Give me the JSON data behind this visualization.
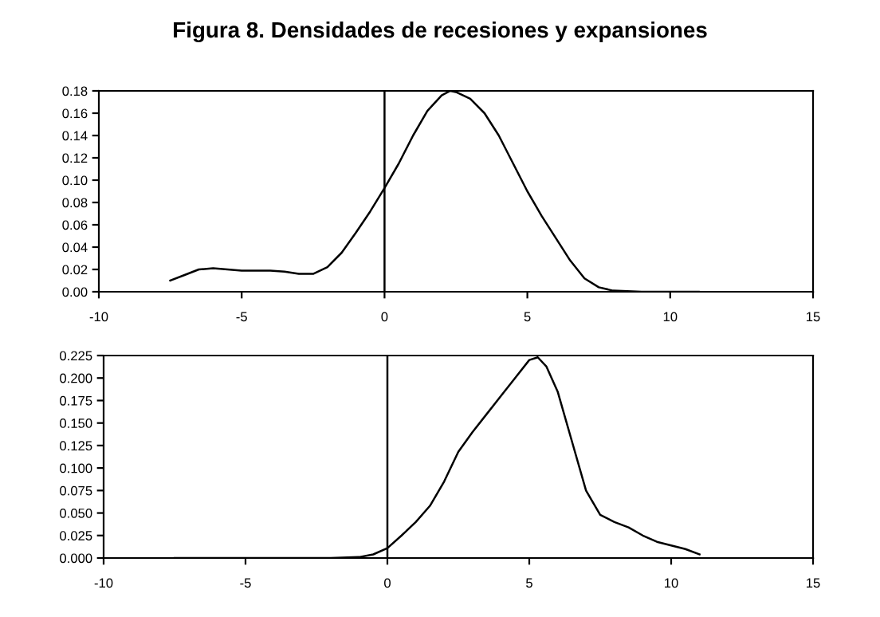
{
  "chart_data": [
    {
      "type": "line",
      "title": "Figura 8. Densidades de recesiones y expansiones",
      "series": [
        {
          "color": "#000000",
          "x": [
            -7.5,
            -7,
            -6.5,
            -6,
            -5.5,
            -5,
            -4.5,
            -4,
            -3.5,
            -3,
            -2.5,
            -2,
            -1.5,
            -1,
            -0.5,
            0,
            0.5,
            1,
            1.5,
            2,
            2.3,
            2.5,
            3,
            3.5,
            4,
            4.5,
            5,
            5.5,
            6,
            6.5,
            7,
            7.5,
            8,
            9,
            10,
            11
          ],
          "values": [
            0.01,
            0.015,
            0.02,
            0.021,
            0.02,
            0.019,
            0.019,
            0.019,
            0.018,
            0.016,
            0.016,
            0.022,
            0.035,
            0.053,
            0.072,
            0.093,
            0.115,
            0.14,
            0.162,
            0.176,
            0.18,
            0.179,
            0.173,
            0.16,
            0.14,
            0.115,
            0.09,
            0.068,
            0.048,
            0.028,
            0.012,
            0.004,
            0.001,
            0.0,
            0.0,
            0.0
          ]
        }
      ],
      "xlim": [
        -10,
        15
      ],
      "xticks": [
        -10,
        -5,
        0,
        5,
        10,
        15
      ],
      "ylim": [
        0,
        0.18
      ],
      "yticks": [
        {
          "value": 0,
          "label": "0.00"
        },
        {
          "value": 0.02,
          "label": "0.02"
        },
        {
          "value": 0.04,
          "label": "0.04"
        },
        {
          "value": 0.06,
          "label": "0.06"
        },
        {
          "value": 0.08,
          "label": "0.08"
        },
        {
          "value": 0.1,
          "label": "0.10"
        },
        {
          "value": 0.12,
          "label": "0.12"
        },
        {
          "value": 0.14,
          "label": "0.14"
        },
        {
          "value": 0.16,
          "label": "0.16"
        },
        {
          "value": 0.18,
          "label": "0.18"
        }
      ],
      "ref_lines": [
        {
          "axis": "x",
          "value": 0,
          "color": "#000000"
        }
      ],
      "grid": false,
      "legend": false
    },
    {
      "type": "line",
      "series": [
        {
          "color": "#000000",
          "x": [
            -7.5,
            -5,
            -2,
            -1,
            -0.5,
            0,
            0.5,
            1,
            1.5,
            2,
            2.5,
            3,
            3.5,
            4,
            4.5,
            5,
            5.3,
            5.6,
            6,
            6.5,
            7,
            7.5,
            8,
            8.5,
            9,
            9.5,
            10,
            10.5,
            11
          ],
          "values": [
            0,
            0,
            0,
            0.001,
            0.004,
            0.011,
            0.025,
            0.04,
            0.058,
            0.085,
            0.118,
            0.14,
            0.16,
            0.18,
            0.2,
            0.22,
            0.223,
            0.213,
            0.185,
            0.13,
            0.075,
            0.048,
            0.04,
            0.034,
            0.025,
            0.018,
            0.014,
            0.01,
            0.004
          ]
        }
      ],
      "xlim": [
        -10,
        15
      ],
      "xticks": [
        -10,
        -5,
        0,
        5,
        10,
        15
      ],
      "ylim": [
        0,
        0.225
      ],
      "yticks": [
        {
          "value": 0,
          "label": "0.000"
        },
        {
          "value": 0.025,
          "label": "0.025"
        },
        {
          "value": 0.05,
          "label": "0.050"
        },
        {
          "value": 0.075,
          "label": "0.075"
        },
        {
          "value": 0.1,
          "label": "0.100"
        },
        {
          "value": 0.125,
          "label": "0.125"
        },
        {
          "value": 0.15,
          "label": "0.150"
        },
        {
          "value": 0.175,
          "label": "0.175"
        },
        {
          "value": 0.2,
          "label": "0.200"
        },
        {
          "value": 0.225,
          "label": "0.225"
        }
      ],
      "ref_lines": [
        {
          "axis": "x",
          "value": 0,
          "color": "#000000"
        }
      ],
      "grid": false,
      "legend": false
    }
  ]
}
